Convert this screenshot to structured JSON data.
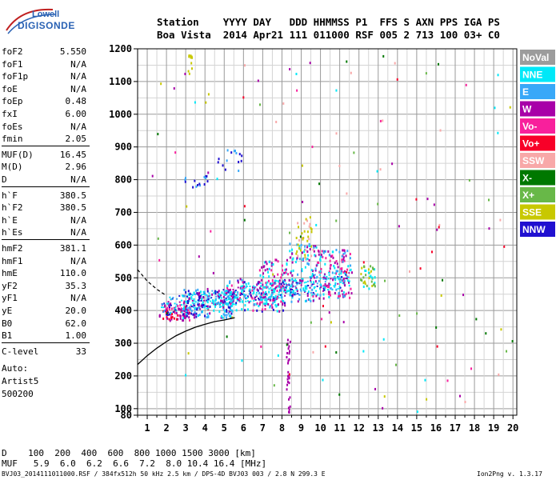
{
  "logo": {
    "line1": "Lowell",
    "line2": "DIGISONDE"
  },
  "header": {
    "row1": "Station    YYYY DAY   DDD HHMMSS P1  FFS S AXN PPS IGA PS",
    "row2": "Boa Vista  2014 Apr21 111 011000 RSF 005 2 713 100 03+ C0"
  },
  "params_group1": [
    {
      "k": "foF2",
      "v": "5.550"
    },
    {
      "k": "foF1",
      "v": "N/A"
    },
    {
      "k": "foF1p",
      "v": "N/A"
    },
    {
      "k": "foE",
      "v": "N/A"
    },
    {
      "k": "foEp",
      "v": "0.48"
    },
    {
      "k": "fxI",
      "v": "6.00"
    },
    {
      "k": "foEs",
      "v": "N/A"
    },
    {
      "k": "fmin",
      "v": "2.05"
    }
  ],
  "params_group2": [
    {
      "k": "MUF(D)",
      "v": "16.45"
    },
    {
      "k": "M(D)",
      "v": "2.96"
    },
    {
      "k": "D",
      "v": "N/A"
    }
  ],
  "params_group3": [
    {
      "k": "h`F",
      "v": "380.5"
    },
    {
      "k": "h`F2",
      "v": "380.5"
    },
    {
      "k": "h`E",
      "v": "N/A"
    },
    {
      "k": "h`Es",
      "v": "N/A"
    }
  ],
  "params_group4": [
    {
      "k": "hmF2",
      "v": "381.1"
    },
    {
      "k": "hmF1",
      "v": "N/A"
    },
    {
      "k": "hmE",
      "v": "110.0"
    },
    {
      "k": "yF2",
      "v": "35.3"
    },
    {
      "k": "yF1",
      "v": "N/A"
    },
    {
      "k": "yE",
      "v": "20.0"
    },
    {
      "k": "B0",
      "v": "62.0"
    },
    {
      "k": "B1",
      "v": "1.00"
    }
  ],
  "params_group5": [
    {
      "k": "C-level",
      "v": "33"
    }
  ],
  "auto": {
    "line1": "Auto:",
    "line2": "Artist5",
    "line3": "500200"
  },
  "legend": [
    {
      "label": "NoVal",
      "color": "#9c9c9c"
    },
    {
      "label": "NNE",
      "color": "#00e8f8"
    },
    {
      "label": "E",
      "color": "#38a8f8"
    },
    {
      "label": "W",
      "color": "#a800a8"
    },
    {
      "label": "Vo-",
      "color": "#f8209c"
    },
    {
      "label": "Vo+",
      "color": "#f80028"
    },
    {
      "label": "SSW",
      "color": "#f8a8a8"
    },
    {
      "label": "X-",
      "color": "#007800"
    },
    {
      "label": "X+",
      "color": "#68b848"
    },
    {
      "label": "SSE",
      "color": "#c8c800"
    },
    {
      "label": "NNW",
      "color": "#2010d0"
    }
  ],
  "chart_data": {
    "type": "scatter",
    "xlim": [
      0.5,
      20.2
    ],
    "ylim": [
      80,
      1200
    ],
    "x_ticks": [
      1,
      2,
      3,
      4,
      5,
      6,
      7,
      8,
      9,
      10,
      11,
      12,
      13,
      14,
      15,
      16,
      17,
      18,
      19,
      20
    ],
    "y_ticks": [
      80,
      100,
      200,
      300,
      400,
      500,
      600,
      700,
      800,
      900,
      1000,
      1100,
      1200
    ],
    "grid": true,
    "legend_position": "right",
    "profile_curve": {
      "x": [
        0.5,
        1.0,
        1.5,
        2.0,
        2.5,
        3.0,
        3.5,
        4.0,
        4.5,
        5.0,
        5.55
      ],
      "y": [
        235,
        262,
        285,
        305,
        323,
        337,
        349,
        358,
        366,
        371,
        378
      ]
    },
    "dashed_curve": {
      "x": [
        0.5,
        1.0,
        1.5,
        2.0
      ],
      "y": [
        525,
        490,
        465,
        445
      ]
    },
    "clusters": [
      {
        "x": [
          1.6,
          3.2
        ],
        "y": [
          372,
          425
        ],
        "n": 80,
        "colors": [
          "#a800a8",
          "#f8209c",
          "#a800a8",
          "#f80028"
        ]
      },
      {
        "x": [
          2.8,
          5.5
        ],
        "y": [
          380,
          470
        ],
        "n": 170,
        "colors": [
          "#2010d0",
          "#00e8f8",
          "#38a8f8",
          "#a800a8"
        ]
      },
      {
        "x": [
          5.0,
          8.2
        ],
        "y": [
          400,
          500
        ],
        "n": 170,
        "colors": [
          "#00e8f8",
          "#38a8f8",
          "#2010d0",
          "#a800a8",
          "#f8209c"
        ]
      },
      {
        "x": [
          6.8,
          8.5
        ],
        "y": [
          420,
          560
        ],
        "n": 90,
        "colors": [
          "#a800a8",
          "#f8209c",
          "#00e8f8"
        ]
      },
      {
        "x": [
          8.3,
          9.8
        ],
        "y": [
          430,
          610
        ],
        "n": 110,
        "colors": [
          "#a800a8",
          "#00e8f8",
          "#38a8f8"
        ]
      },
      {
        "x": [
          8.7,
          9.6
        ],
        "y": [
          560,
          690
        ],
        "n": 35,
        "colors": [
          "#c8c800",
          "#f8a8a8"
        ]
      },
      {
        "x": [
          9.8,
          11.6
        ],
        "y": [
          440,
          590
        ],
        "n": 140,
        "colors": [
          "#a800a8",
          "#00e8f8",
          "#38a8f8",
          "#f8209c"
        ]
      },
      {
        "x": [
          12.0,
          12.8
        ],
        "y": [
          470,
          540
        ],
        "n": 40,
        "colors": [
          "#c8c800",
          "#68b848",
          "#00e8f8"
        ]
      },
      {
        "x": [
          2.8,
          4.2
        ],
        "y": [
          760,
          820
        ],
        "n": 15,
        "colors": [
          "#2010d0",
          "#38a8f8"
        ]
      },
      {
        "x": [
          4.5,
          5.9
        ],
        "y": [
          820,
          895
        ],
        "n": 15,
        "colors": [
          "#2010d0",
          "#38a8f8"
        ]
      },
      {
        "x": [
          8.2,
          8.4
        ],
        "y": [
          88,
          330
        ],
        "n": 30,
        "colors": [
          "#a800a8"
        ]
      },
      {
        "x": [
          3.1,
          3.3
        ],
        "y": [
          1120,
          1185
        ],
        "n": 10,
        "colors": [
          "#c8c800"
        ]
      },
      {
        "x": [
          1.2,
          20.0
        ],
        "y": [
          90,
          1190
        ],
        "n": 130,
        "colors": [
          "#a800a8",
          "#007800",
          "#f8209c",
          "#68b848",
          "#f8a8a8",
          "#00e8f8",
          "#c8c800",
          "#f80028"
        ]
      }
    ]
  },
  "bottom": {
    "d_row": "D    100  200  400  600  800 1000 1500 3000 [km]",
    "muf_row": "MUF   5.9  6.0  6.2  6.6  7.2  8.0 10.4 16.4 [MHz]"
  },
  "footer": {
    "left": "BVJ03_2014111011000.RSF / 384fx512h 50 kHz 2.5 km / DPS-4D BVJ03 003 / 2.8 N 299.3 E",
    "right": "Ion2Png v. 1.3.17"
  }
}
